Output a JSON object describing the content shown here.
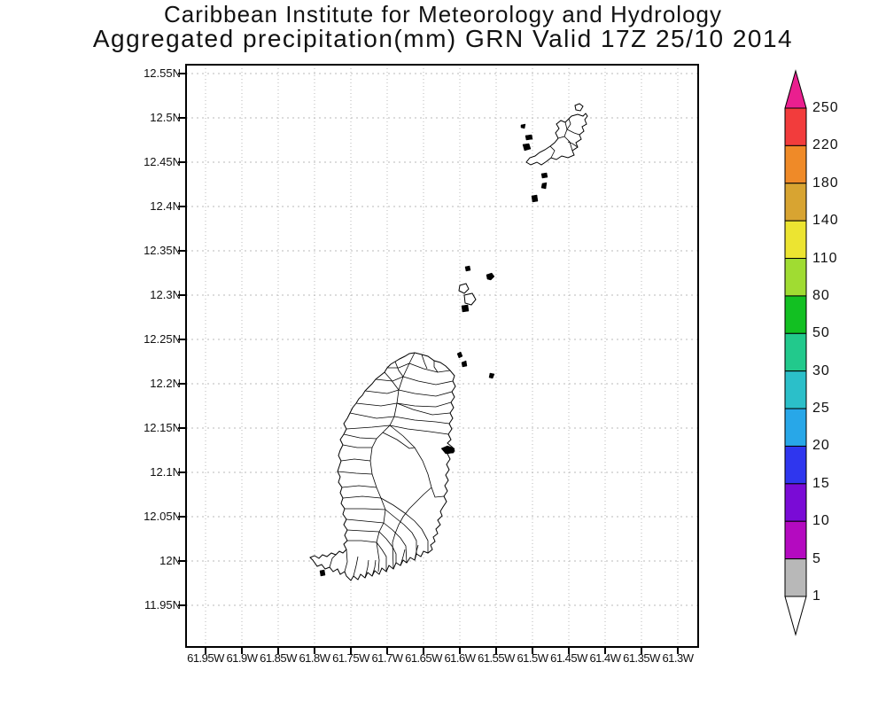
{
  "title": {
    "line1": "Caribbean Institute for Meteorology and Hydrology",
    "line2": "Aggregated precipitation(mm) GRN Valid 17Z 25/10 2014"
  },
  "map": {
    "y_axis": {
      "ticks": [
        "12.55N",
        "12.5N",
        "12.45N",
        "12.4N",
        "12.35N",
        "12.3N",
        "12.25N",
        "12.2N",
        "12.15N",
        "12.1N",
        "12.05N",
        "12N",
        "11.95N"
      ]
    },
    "x_axis": {
      "ticks": [
        "61.95W",
        "61.9W",
        "61.85W",
        "61.8W",
        "61.75W",
        "61.7W",
        "61.65W",
        "61.6W",
        "61.55W",
        "61.5W",
        "61.45W",
        "61.4W",
        "61.35W",
        "61.3W"
      ]
    }
  },
  "colorbar": {
    "levels": [
      "250",
      "220",
      "180",
      "140",
      "110",
      "80",
      "50",
      "30",
      "25",
      "20",
      "15",
      "10",
      "5",
      "1"
    ],
    "segment_colors": [
      "#f23c3c",
      "#ef8a28",
      "#d8a431",
      "#ece431",
      "#a0dc32",
      "#12c022",
      "#22c98c",
      "#2bbfc9",
      "#28a7e8",
      "#2f36ee",
      "#7a0bd6",
      "#b40ac0",
      "#b8b8b8"
    ],
    "arrow_top_color": "#ea1f8f",
    "arrow_bottom_color": "#ffffff",
    "outline_color": "#000000"
  },
  "chart_data": {
    "type": "map",
    "title": "Caribbean Institute for Meteorology and Hydrology",
    "subtitle": "Aggregated precipitation(mm) GRN Valid 17Z 25/10 2014",
    "region": "GRN (Grenada, Carriacou and Petite Martinique) with watershed boundaries",
    "lon_range_deg_west": [
      61.95,
      61.3
    ],
    "lat_range_deg_north": [
      11.95,
      12.55
    ],
    "grid_interval_deg": 0.05,
    "legend_levels_mm": [
      1,
      5,
      10,
      15,
      20,
      25,
      30,
      50,
      80,
      110,
      140,
      180,
      220,
      250
    ],
    "legend_position": "right",
    "grid": "dotted lat/lon graticule on",
    "precipitation_shading": "none visible on map (all areas unshaded / below lowest contour)"
  }
}
